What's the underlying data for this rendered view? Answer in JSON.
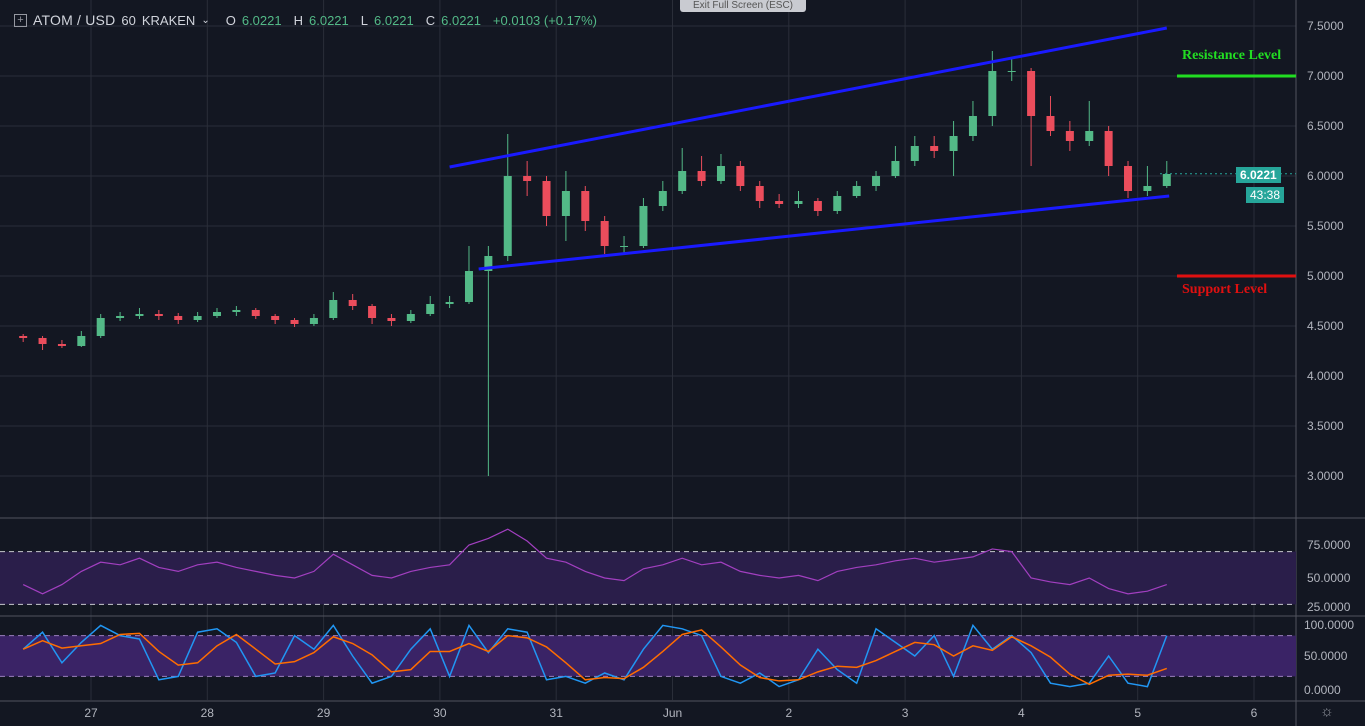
{
  "header": {
    "symbol": "ATOM / USD",
    "interval": "60",
    "exchange": "KRAKEN",
    "o_label": "O",
    "o": "6.0221",
    "h_label": "H",
    "h": "6.0221",
    "l_label": "L",
    "l": "6.0221",
    "c_label": "C",
    "c": "6.0221",
    "change": "+0.0103 (+0.17%)"
  },
  "exit_fullscreen": "Exit Full Screen (ESC)",
  "last_price": "6.0221",
  "countdown": "43:38",
  "annotations": {
    "resistance": "Resistance Level",
    "support": "Support Level"
  },
  "colors": {
    "background": "#131722",
    "up": "#53b987",
    "down": "#eb4d5c",
    "channel": "#1a1aff",
    "resistance": "#22dd22",
    "support": "#e01010",
    "rsi": "#a23fc0",
    "stoch_k": "#2196f3",
    "stoch_d": "#ff6d00",
    "band": "#2a1e4a"
  },
  "chart_data": [
    {
      "type": "candlestick",
      "ylim": [
        3.0,
        7.5
      ],
      "yticks": [
        "7.5000",
        "7.0000",
        "6.5000",
        "6.0000",
        "5.5000",
        "5.0000",
        "4.5000",
        "4.0000",
        "3.5000",
        "3.0000"
      ],
      "xticks": [
        "27",
        "28",
        "29",
        "30",
        "31",
        "Jun",
        "2",
        "3",
        "4",
        "5",
        "6"
      ],
      "candles": [
        [
          "05-26 08:00",
          4.4,
          4.42,
          4.34,
          4.38
        ],
        [
          "05-26 12:00",
          4.38,
          4.4,
          4.26,
          4.32
        ],
        [
          "05-26 16:00",
          4.32,
          4.36,
          4.28,
          4.3
        ],
        [
          "05-26 20:00",
          4.3,
          4.45,
          4.29,
          4.4
        ],
        [
          "05-27 00:00",
          4.4,
          4.62,
          4.38,
          4.58
        ],
        [
          "05-27 04:00",
          4.58,
          4.64,
          4.55,
          4.6
        ],
        [
          "05-27 08:00",
          4.6,
          4.68,
          4.57,
          4.62
        ],
        [
          "05-27 12:00",
          4.62,
          4.66,
          4.56,
          4.6
        ],
        [
          "05-27 16:00",
          4.6,
          4.63,
          4.52,
          4.56
        ],
        [
          "05-27 20:00",
          4.56,
          4.64,
          4.54,
          4.6
        ],
        [
          "05-28 00:00",
          4.6,
          4.68,
          4.58,
          4.64
        ],
        [
          "05-28 04:00",
          4.64,
          4.7,
          4.6,
          4.66
        ],
        [
          "05-28 08:00",
          4.66,
          4.68,
          4.57,
          4.6
        ],
        [
          "05-28 12:00",
          4.6,
          4.62,
          4.52,
          4.56
        ],
        [
          "05-28 16:00",
          4.56,
          4.58,
          4.49,
          4.52
        ],
        [
          "05-28 20:00",
          4.52,
          4.62,
          4.5,
          4.58
        ],
        [
          "05-29 00:00",
          4.58,
          4.84,
          4.56,
          4.76
        ],
        [
          "05-29 04:00",
          4.76,
          4.82,
          4.66,
          4.7
        ],
        [
          "05-29 08:00",
          4.7,
          4.72,
          4.52,
          4.58
        ],
        [
          "05-29 12:00",
          4.58,
          4.62,
          4.5,
          4.55
        ],
        [
          "05-29 16:00",
          4.55,
          4.66,
          4.53,
          4.62
        ],
        [
          "05-29 20:00",
          4.62,
          4.8,
          4.6,
          4.72
        ],
        [
          "05-30 00:00",
          4.72,
          4.8,
          4.68,
          4.74
        ],
        [
          "05-30 04:00",
          4.74,
          5.3,
          4.72,
          5.05
        ],
        [
          "05-30 08:00",
          5.05,
          5.3,
          3.0,
          5.2
        ],
        [
          "05-30 12:00",
          5.2,
          6.42,
          5.15,
          6.0
        ],
        [
          "05-30 16:00",
          6.0,
          6.15,
          5.8,
          5.95
        ],
        [
          "05-30 20:00",
          5.95,
          6.0,
          5.5,
          5.6
        ],
        [
          "05-31 00:00",
          5.6,
          6.05,
          5.35,
          5.85
        ],
        [
          "05-31 04:00",
          5.85,
          5.9,
          5.45,
          5.55
        ],
        [
          "05-31 08:00",
          5.55,
          5.6,
          5.22,
          5.3
        ],
        [
          "05-31 12:00",
          5.3,
          5.4,
          5.22,
          5.3
        ],
        [
          "05-31 16:00",
          5.3,
          5.78,
          5.28,
          5.7
        ],
        [
          "05-31 20:00",
          5.7,
          5.95,
          5.65,
          5.85
        ],
        [
          "06-01 00:00",
          5.85,
          6.28,
          5.82,
          6.05
        ],
        [
          "06-01 04:00",
          6.05,
          6.2,
          5.9,
          5.95
        ],
        [
          "06-01 08:00",
          5.95,
          6.22,
          5.92,
          6.1
        ],
        [
          "06-01 12:00",
          6.1,
          6.15,
          5.85,
          5.9
        ],
        [
          "06-01 16:00",
          5.9,
          5.95,
          5.68,
          5.75
        ],
        [
          "06-01 20:00",
          5.75,
          5.82,
          5.68,
          5.72
        ],
        [
          "06-02 00:00",
          5.72,
          5.85,
          5.68,
          5.75
        ],
        [
          "06-02 04:00",
          5.75,
          5.78,
          5.6,
          5.65
        ],
        [
          "06-02 08:00",
          5.65,
          5.85,
          5.62,
          5.8
        ],
        [
          "06-02 12:00",
          5.8,
          5.95,
          5.78,
          5.9
        ],
        [
          "06-02 16:00",
          5.9,
          6.05,
          5.85,
          6.0
        ],
        [
          "06-02 20:00",
          6.0,
          6.3,
          5.98,
          6.15
        ],
        [
          "06-03 00:00",
          6.15,
          6.4,
          6.1,
          6.3
        ],
        [
          "06-03 04:00",
          6.3,
          6.4,
          6.18,
          6.25
        ],
        [
          "06-03 08:00",
          6.25,
          6.55,
          6.0,
          6.4
        ],
        [
          "06-03 12:00",
          6.4,
          6.75,
          6.35,
          6.6
        ],
        [
          "06-03 16:00",
          6.6,
          7.25,
          6.5,
          7.05
        ],
        [
          "06-03 20:00",
          7.05,
          7.18,
          6.95,
          7.05
        ],
        [
          "06-04 00:00",
          7.05,
          7.08,
          6.1,
          6.6
        ],
        [
          "06-04 04:00",
          6.6,
          6.8,
          6.4,
          6.45
        ],
        [
          "06-04 08:00",
          6.45,
          6.55,
          6.25,
          6.35
        ],
        [
          "06-04 12:00",
          6.35,
          6.75,
          6.3,
          6.45
        ],
        [
          "06-04 16:00",
          6.45,
          6.5,
          6.0,
          6.1
        ],
        [
          "06-04 20:00",
          6.1,
          6.15,
          5.78,
          5.85
        ],
        [
          "06-05 00:00",
          5.85,
          6.1,
          5.8,
          5.9
        ],
        [
          "06-05 04:00",
          5.9,
          6.15,
          5.88,
          6.02
        ]
      ],
      "channel_upper": [
        [
          "05-30 02:00",
          6.09
        ],
        [
          "06-05 06:00",
          7.48
        ]
      ],
      "channel_lower": [
        [
          "05-30 08:00",
          5.07
        ],
        [
          "06-05 06:30",
          5.8
        ]
      ],
      "resistance_level": 7.0,
      "support_level": 5.0
    },
    {
      "type": "line",
      "name": "RSI",
      "ylim": [
        20,
        90
      ],
      "yticks": [
        "75.0000",
        "50.0000",
        "25.0000"
      ],
      "bands": [
        30,
        70
      ],
      "values": [
        45,
        38,
        45,
        55,
        62,
        60,
        65,
        58,
        55,
        60,
        62,
        58,
        55,
        52,
        50,
        55,
        68,
        60,
        52,
        50,
        55,
        58,
        60,
        75,
        80,
        87,
        78,
        65,
        62,
        55,
        50,
        48,
        57,
        60,
        65,
        60,
        62,
        55,
        52,
        50,
        52,
        48,
        55,
        58,
        60,
        63,
        65,
        62,
        64,
        66,
        72,
        70,
        50,
        47,
        45,
        50,
        42,
        38,
        40,
        45
      ]
    },
    {
      "type": "line",
      "name": "Stoch",
      "ylim": [
        -5,
        105
      ],
      "yticks": [
        "100.0000",
        "50.0000",
        "0.0000"
      ],
      "bands": [
        20,
        80
      ],
      "k": [
        60,
        85,
        40,
        70,
        95,
        80,
        75,
        15,
        20,
        85,
        90,
        70,
        20,
        25,
        80,
        60,
        95,
        50,
        10,
        20,
        60,
        90,
        20,
        95,
        55,
        90,
        85,
        15,
        20,
        10,
        25,
        15,
        60,
        95,
        90,
        80,
        20,
        10,
        25,
        5,
        15,
        60,
        30,
        10,
        90,
        70,
        50,
        80,
        20,
        95,
        60,
        80,
        55,
        10,
        5,
        10,
        50,
        10,
        5,
        80
      ]
    }
  ]
}
